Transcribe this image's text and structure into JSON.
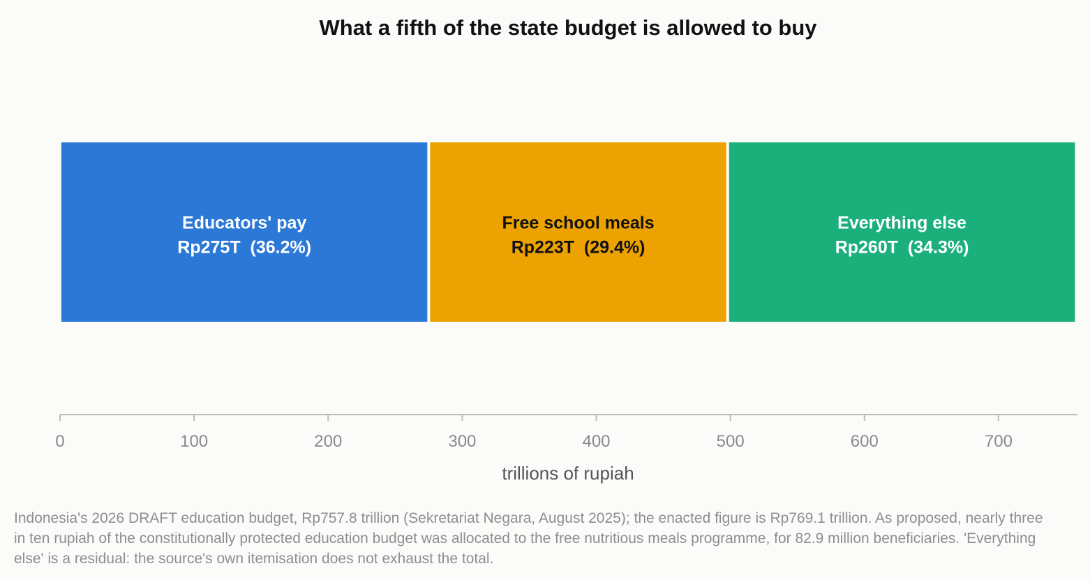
{
  "chart_data": {
    "type": "bar",
    "orientation": "horizontal-stacked",
    "title": "What a fifth of the state budget is allowed to buy",
    "xlabel": "trillions of rupiah",
    "xlim": [
      0,
      760
    ],
    "xticks": [
      0,
      100,
      200,
      300,
      400,
      500,
      600,
      700
    ],
    "grid": false,
    "segments": [
      {
        "name": "Educators' pay",
        "value": 275,
        "value_label": "Rp275T  (36.2%)",
        "color": "#2b78d6",
        "text_color": "#ffffff"
      },
      {
        "name": "Free school meals",
        "value": 223,
        "value_label": "Rp223T  (29.4%)",
        "color": "#eca200",
        "text_color": "#111111"
      },
      {
        "name": "Everything else",
        "value": 260,
        "value_label": "Rp260T  (34.3%)",
        "color": "#1bb07b",
        "text_color": "#ffffff"
      }
    ]
  },
  "footnote": "Indonesia's 2026 DRAFT education budget, Rp757.8 trillion (Sekretariat Negara, August 2025); the enacted figure is Rp769.1 trillion. As proposed, nearly three in ten rupiah of the constitutionally protected education budget was allocated to the free nutritious meals programme, for 82.9 million beneficiaries. 'Everything else' is a residual: the source's own itemisation does not exhaust the total."
}
